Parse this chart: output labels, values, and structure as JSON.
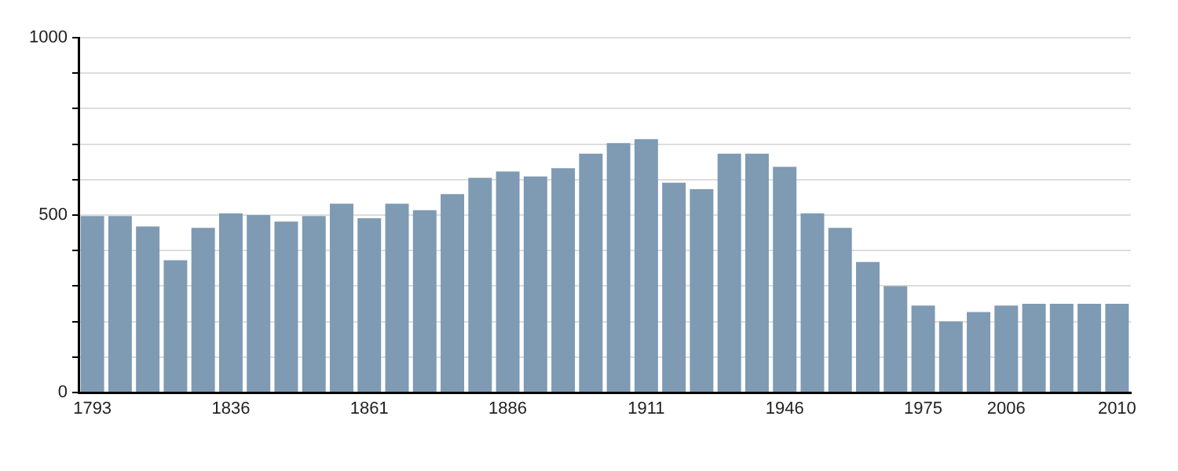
{
  "chart_data": {
    "type": "bar",
    "categories": [
      "1793",
      null,
      null,
      null,
      null,
      "1836",
      null,
      null,
      null,
      null,
      "1861",
      null,
      null,
      null,
      null,
      "1886",
      null,
      null,
      null,
      null,
      "1911",
      null,
      null,
      null,
      null,
      "1946",
      null,
      null,
      null,
      null,
      "1975",
      null,
      null,
      "2006",
      null,
      null,
      null,
      "2010"
    ],
    "values": [
      497,
      497,
      468,
      373,
      464,
      505,
      500,
      482,
      497,
      532,
      491,
      532,
      514,
      559,
      605,
      623,
      609,
      632,
      673,
      703,
      714,
      591,
      573,
      673,
      673,
      636,
      505,
      464,
      368,
      300,
      245,
      200,
      227,
      245,
      250,
      250,
      250,
      250
    ],
    "color": "#7f9ab3",
    "ylim": [
      0,
      1000
    ],
    "yticks": [
      0,
      {
        "value": 100,
        "label": null
      },
      {
        "value": 200,
        "label": null
      },
      {
        "value": 300,
        "label": null
      },
      {
        "value": 400,
        "label": null
      },
      500,
      {
        "value": 600,
        "label": null
      },
      {
        "value": 700,
        "label": null
      },
      {
        "value": 800,
        "label": null
      },
      {
        "value": 900,
        "label": null
      },
      1000
    ],
    "grid": "y"
  }
}
